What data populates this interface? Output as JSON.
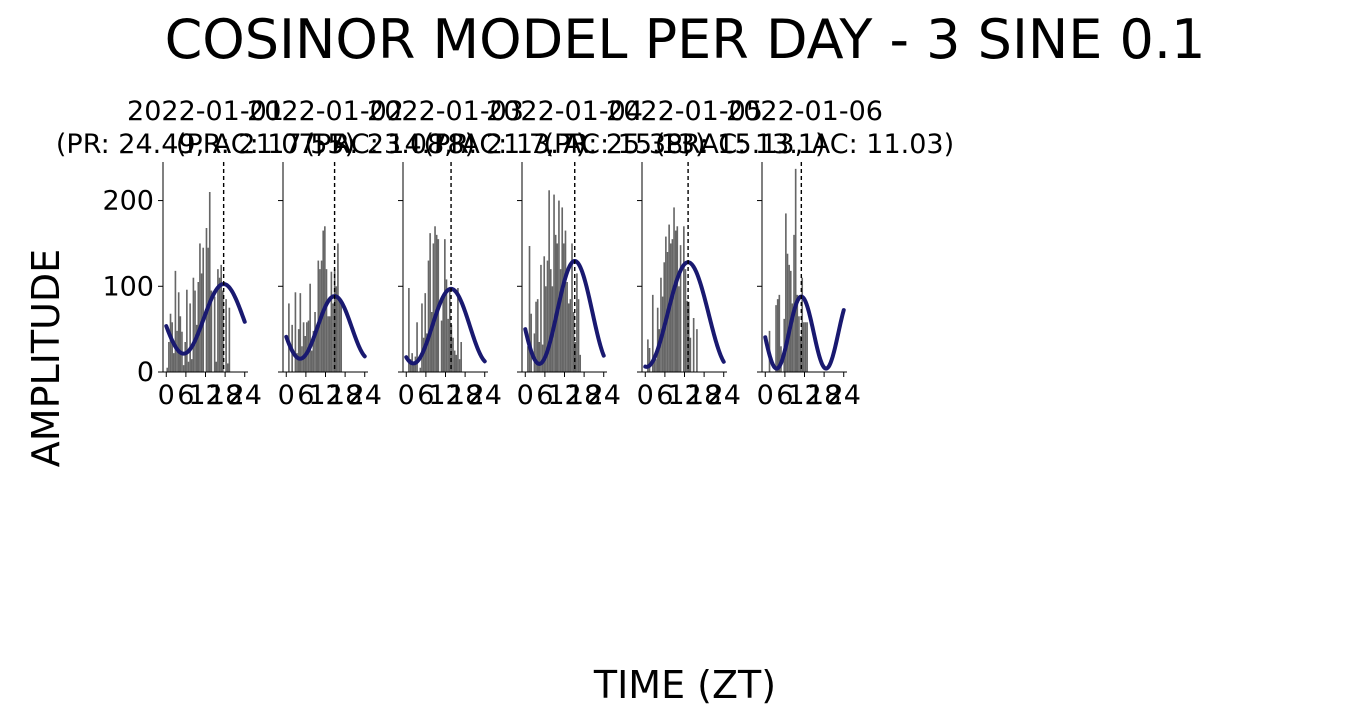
{
  "figure": {
    "title": "COSINOR MODEL PER DAY - 3 SINE 0.1",
    "xlabel": "TIME (ZT)",
    "ylabel": "AMPLITUDE"
  },
  "colors": {
    "bars": "#666666",
    "fit": "#191970",
    "acrophase_line": "#000000"
  },
  "chart_data": [
    {
      "type": "bar",
      "title_line1": "2022-01-01",
      "title_line2": "(PR: 24.49, AC: 17.55)",
      "xticks": [
        0,
        6,
        12,
        18,
        24
      ],
      "yticks": [
        0,
        100,
        200
      ],
      "xlim": [
        -1,
        25
      ],
      "ylim": [
        0,
        245
      ],
      "acrophase": 17.55,
      "x": [
        0.3,
        0.8,
        1.3,
        1.8,
        2.3,
        2.8,
        3.3,
        3.8,
        4.3,
        4.8,
        5.3,
        5.8,
        6.3,
        6.8,
        7.3,
        7.8,
        8.3,
        8.8,
        9.3,
        9.8,
        10.3,
        10.8,
        11.3,
        11.8,
        12.3,
        12.8,
        13.3,
        13.8,
        14.3,
        14.8,
        15.3,
        15.8,
        16.3,
        16.8,
        17.3,
        17.8,
        18.3,
        18.8,
        19.3,
        19.8,
        20.3,
        20.8,
        21.3,
        21.8,
        22.3,
        22.8,
        23.3,
        23.8
      ],
      "values": [
        5,
        35,
        68,
        58,
        22,
        118,
        48,
        93,
        65,
        47,
        8,
        35,
        96,
        12,
        80,
        15,
        110,
        95,
        55,
        105,
        150,
        115,
        145,
        0,
        168,
        145,
        210,
        95,
        0,
        88,
        12,
        120,
        110,
        125,
        95,
        0,
        85,
        10,
        75,
        0,
        0,
        0,
        0,
        0,
        0,
        0,
        0,
        0
      ],
      "fit": {
        "mesor": 62,
        "amplitude": 40.6,
        "acrophase": 17.55,
        "period": 24.49
      }
    },
    {
      "type": "bar",
      "title_line1": "2022-01-02",
      "title_line2": "(PR: 21.07, AC: 14.78)",
      "xticks": [
        0,
        6,
        12,
        18,
        24
      ],
      "yticks": [
        0,
        100,
        200
      ],
      "xlim": [
        -1,
        25
      ],
      "ylim": [
        0,
        245
      ],
      "acrophase": 14.78,
      "x": [
        0.3,
        0.8,
        1.3,
        1.8,
        2.3,
        2.8,
        3.3,
        3.8,
        4.3,
        4.8,
        5.3,
        5.8,
        6.3,
        6.8,
        7.3,
        7.8,
        8.3,
        8.8,
        9.3,
        9.8,
        10.3,
        10.8,
        11.3,
        11.8,
        12.3,
        12.8,
        13.3,
        13.8,
        14.3,
        14.8,
        15.3,
        15.8,
        16.3,
        16.8,
        17.3,
        17.8,
        18.3,
        18.8,
        19.3,
        19.8,
        20.3,
        20.8,
        21.3,
        21.8,
        22.3,
        22.8,
        23.3,
        23.8
      ],
      "values": [
        0,
        80,
        0,
        55,
        0,
        93,
        22,
        50,
        92,
        30,
        58,
        42,
        58,
        60,
        103,
        25,
        48,
        70,
        55,
        130,
        120,
        130,
        165,
        170,
        120,
        65,
        65,
        117,
        80,
        120,
        100,
        150,
        82,
        82,
        0,
        0,
        0,
        0,
        0,
        0,
        0,
        0,
        0,
        0,
        0,
        0,
        0,
        0
      ],
      "fit": {
        "mesor": 52,
        "amplitude": 36.5,
        "acrophase": 14.78,
        "period": 21.07
      }
    },
    {
      "type": "bar",
      "title_line1": "2022-01-03",
      "title_line2": "(PR: 23.08, AC: 13.7)",
      "xticks": [
        0,
        6,
        12,
        18,
        24
      ],
      "yticks": [
        0,
        100,
        200
      ],
      "xlim": [
        -1,
        25
      ],
      "ylim": [
        0,
        245
      ],
      "acrophase": 13.7,
      "x": [
        0.3,
        0.8,
        1.3,
        1.8,
        2.3,
        2.8,
        3.3,
        3.8,
        4.3,
        4.8,
        5.3,
        5.8,
        6.3,
        6.8,
        7.3,
        7.8,
        8.3,
        8.8,
        9.3,
        9.8,
        10.3,
        10.8,
        11.3,
        11.8,
        12.3,
        12.8,
        13.3,
        13.8,
        14.3,
        14.8,
        15.3,
        15.8,
        16.3,
        16.8,
        17.3,
        17.8,
        18.3,
        18.8,
        19.3,
        19.8,
        20.3,
        20.8,
        21.3,
        21.8,
        22.3,
        22.8,
        23.3,
        23.8
      ],
      "values": [
        0,
        98,
        15,
        22,
        8,
        18,
        58,
        0,
        5,
        80,
        40,
        92,
        45,
        130,
        162,
        70,
        150,
        170,
        160,
        155,
        0,
        60,
        90,
        155,
        108,
        62,
        95,
        55,
        40,
        25,
        20,
        98,
        15,
        35,
        0,
        0,
        0,
        0,
        0,
        0,
        0,
        0,
        0,
        0,
        0,
        0,
        0,
        0
      ],
      "fit": {
        "mesor": 53.5,
        "amplitude": 43.5,
        "acrophase": 13.7,
        "period": 23.08
      }
    },
    {
      "type": "bar",
      "title_line1": "2022-01-04",
      "title_line2": "(PR: 21.7, AC: 15.13)",
      "xticks": [
        0,
        6,
        12,
        18,
        24
      ],
      "yticks": [
        0,
        100,
        200
      ],
      "xlim": [
        -1,
        25
      ],
      "ylim": [
        0,
        245
      ],
      "acrophase": 15.13,
      "x": [
        0.3,
        0.8,
        1.3,
        1.8,
        2.3,
        2.8,
        3.3,
        3.8,
        4.3,
        4.8,
        5.3,
        5.8,
        6.3,
        6.8,
        7.3,
        7.8,
        8.3,
        8.8,
        9.3,
        9.8,
        10.3,
        10.8,
        11.3,
        11.8,
        12.3,
        12.8,
        13.3,
        13.8,
        14.3,
        14.8,
        15.3,
        15.8,
        16.3,
        16.8,
        17.3,
        17.8,
        18.3,
        18.8,
        19.3,
        19.8,
        20.3,
        20.8,
        21.3,
        21.8,
        22.3,
        22.8,
        23.3,
        23.8
      ],
      "values": [
        0,
        30,
        147,
        68,
        0,
        45,
        82,
        85,
        35,
        125,
        32,
        135,
        100,
        130,
        212,
        120,
        100,
        207,
        160,
        150,
        200,
        120,
        192,
        150,
        165,
        105,
        80,
        85,
        150,
        70,
        35,
        115,
        85,
        20,
        0,
        0,
        0,
        0,
        0,
        0,
        0,
        0,
        0,
        0,
        0,
        0,
        0,
        0
      ],
      "fit": {
        "mesor": 69.5,
        "amplitude": 60,
        "acrophase": 15.13,
        "period": 21.7
      }
    },
    {
      "type": "bar",
      "title_line1": "2022-01-05",
      "title_line2": "(PR: 25.38, AC: 13.1)",
      "xticks": [
        0,
        6,
        12,
        18,
        24
      ],
      "yticks": [
        0,
        100,
        200
      ],
      "xlim": [
        -1,
        25
      ],
      "ylim": [
        0,
        245
      ],
      "acrophase": 13.1,
      "x": [
        0.3,
        0.8,
        1.3,
        1.8,
        2.3,
        2.8,
        3.3,
        3.8,
        4.3,
        4.8,
        5.3,
        5.8,
        6.3,
        6.8,
        7.3,
        7.8,
        8.3,
        8.8,
        9.3,
        9.8,
        10.3,
        10.8,
        11.3,
        11.8,
        12.3,
        12.8,
        13.3,
        13.8,
        14.3,
        14.8,
        15.3,
        15.8,
        16.3,
        16.8,
        17.3,
        17.8,
        18.3,
        18.8,
        19.3,
        19.8,
        20.3,
        20.8,
        21.3,
        21.8,
        22.3,
        22.8,
        23.3,
        23.8
      ],
      "values": [
        0,
        38,
        28,
        0,
        90,
        20,
        15,
        75,
        50,
        110,
        88,
        128,
        158,
        140,
        172,
        150,
        155,
        192,
        165,
        170,
        100,
        148,
        0,
        170,
        120,
        83,
        82,
        40,
        0,
        63,
        0,
        50,
        0,
        0,
        0,
        0,
        0,
        0,
        0,
        0,
        0,
        0,
        0,
        0,
        0,
        0,
        0,
        0
      ],
      "fit": {
        "mesor": 67,
        "amplitude": 61,
        "acrophase": 13.1,
        "period": 25.38
      }
    },
    {
      "type": "bar",
      "title_line1": "2022-01-06",
      "title_line2": "(PR: 15.13, AC: 11.03)",
      "xticks": [
        0,
        6,
        12,
        18,
        24
      ],
      "yticks": [
        0,
        100,
        200
      ],
      "xlim": [
        -1,
        25
      ],
      "ylim": [
        0,
        245
      ],
      "acrophase": 11.03,
      "x": [
        0.3,
        0.8,
        1.3,
        1.8,
        2.3,
        2.8,
        3.3,
        3.8,
        4.3,
        4.8,
        5.3,
        5.8,
        6.3,
        6.8,
        7.3,
        7.8,
        8.3,
        8.8,
        9.3,
        9.8,
        10.3,
        10.8,
        11.3,
        11.8,
        12.3,
        12.8,
        13.3,
        13.8,
        14.3,
        14.8,
        15.3,
        15.8,
        16.3,
        16.8,
        17.3,
        17.8,
        18.3,
        18.8,
        19.3,
        19.8,
        20.3,
        20.8,
        21.3,
        21.8,
        22.3,
        22.8,
        23.3,
        23.8
      ],
      "values": [
        0,
        0,
        48,
        0,
        0,
        0,
        78,
        85,
        90,
        30,
        0,
        62,
        185,
        138,
        125,
        118,
        80,
        160,
        237,
        90,
        65,
        42,
        110,
        58,
        58,
        58,
        0,
        0,
        0,
        0,
        0,
        0,
        0,
        0,
        0,
        0,
        0,
        0,
        0,
        0,
        0,
        0,
        0,
        0,
        0,
        0,
        0,
        0
      ],
      "fit": {
        "mesor": 46,
        "amplitude": 42,
        "acrophase": 11.03,
        "period": 15.13
      }
    }
  ]
}
